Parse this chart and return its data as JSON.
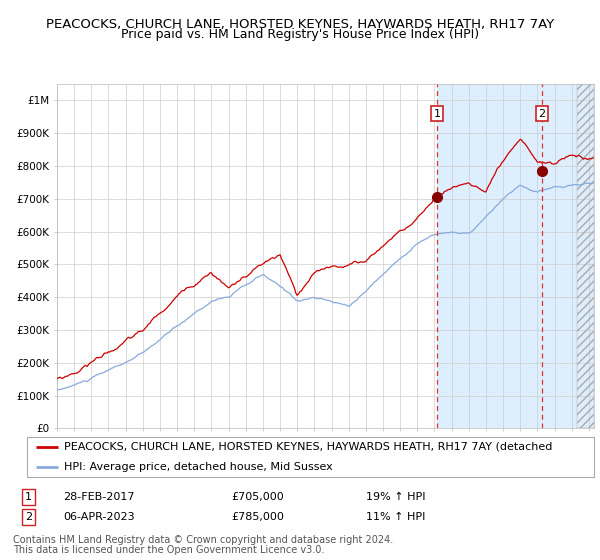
{
  "title": "PEACOCKS, CHURCH LANE, HORSTED KEYNES, HAYWARDS HEATH, RH17 7AY",
  "subtitle": "Price paid vs. HM Land Registry's House Price Index (HPI)",
  "ylabel_ticks": [
    "£0",
    "£100K",
    "£200K",
    "£300K",
    "£400K",
    "£500K",
    "£600K",
    "£700K",
    "£800K",
    "£900K",
    "£1M"
  ],
  "ytick_values": [
    0,
    100000,
    200000,
    300000,
    400000,
    500000,
    600000,
    700000,
    800000,
    900000,
    1000000
  ],
  "ylim": [
    0,
    1050000
  ],
  "xlim_start": 1995.0,
  "xlim_end": 2026.3,
  "shade_start": 2017.16,
  "hatch_start": 2025.3,
  "transaction1": {
    "date_num": 2017.16,
    "price": 705000,
    "label": "1",
    "pct": "19%",
    "date_str": "28-FEB-2017"
  },
  "transaction2": {
    "date_num": 2023.27,
    "price": 785000,
    "label": "2",
    "pct": "11%",
    "date_str": "06-APR-2023"
  },
  "red_line_color": "#cc0000",
  "blue_line_color": "#88aadd",
  "bg_shaded_color": "#ddeeff",
  "bg_main_color": "#ffffff",
  "grid_color": "#cccccc",
  "dashed_vline_color": "#dd3333",
  "marker_color": "#880000",
  "legend_red_label": "PEACOCKS, CHURCH LANE, HORSTED KEYNES, HAYWARDS HEATH, RH17 7AY (detached",
  "legend_blue_label": "HPI: Average price, detached house, Mid Sussex",
  "table_row1": [
    "1",
    "28-FEB-2017",
    "£705,000",
    "19% ↑ HPI"
  ],
  "table_row2": [
    "2",
    "06-APR-2023",
    "£785,000",
    "11% ↑ HPI"
  ],
  "footnote1": "Contains HM Land Registry data © Crown copyright and database right 2024.",
  "footnote2": "This data is licensed under the Open Government Licence v3.0.",
  "title_fontsize": 9.5,
  "subtitle_fontsize": 9,
  "tick_fontsize": 7.5,
  "legend_fontsize": 8,
  "table_fontsize": 8
}
